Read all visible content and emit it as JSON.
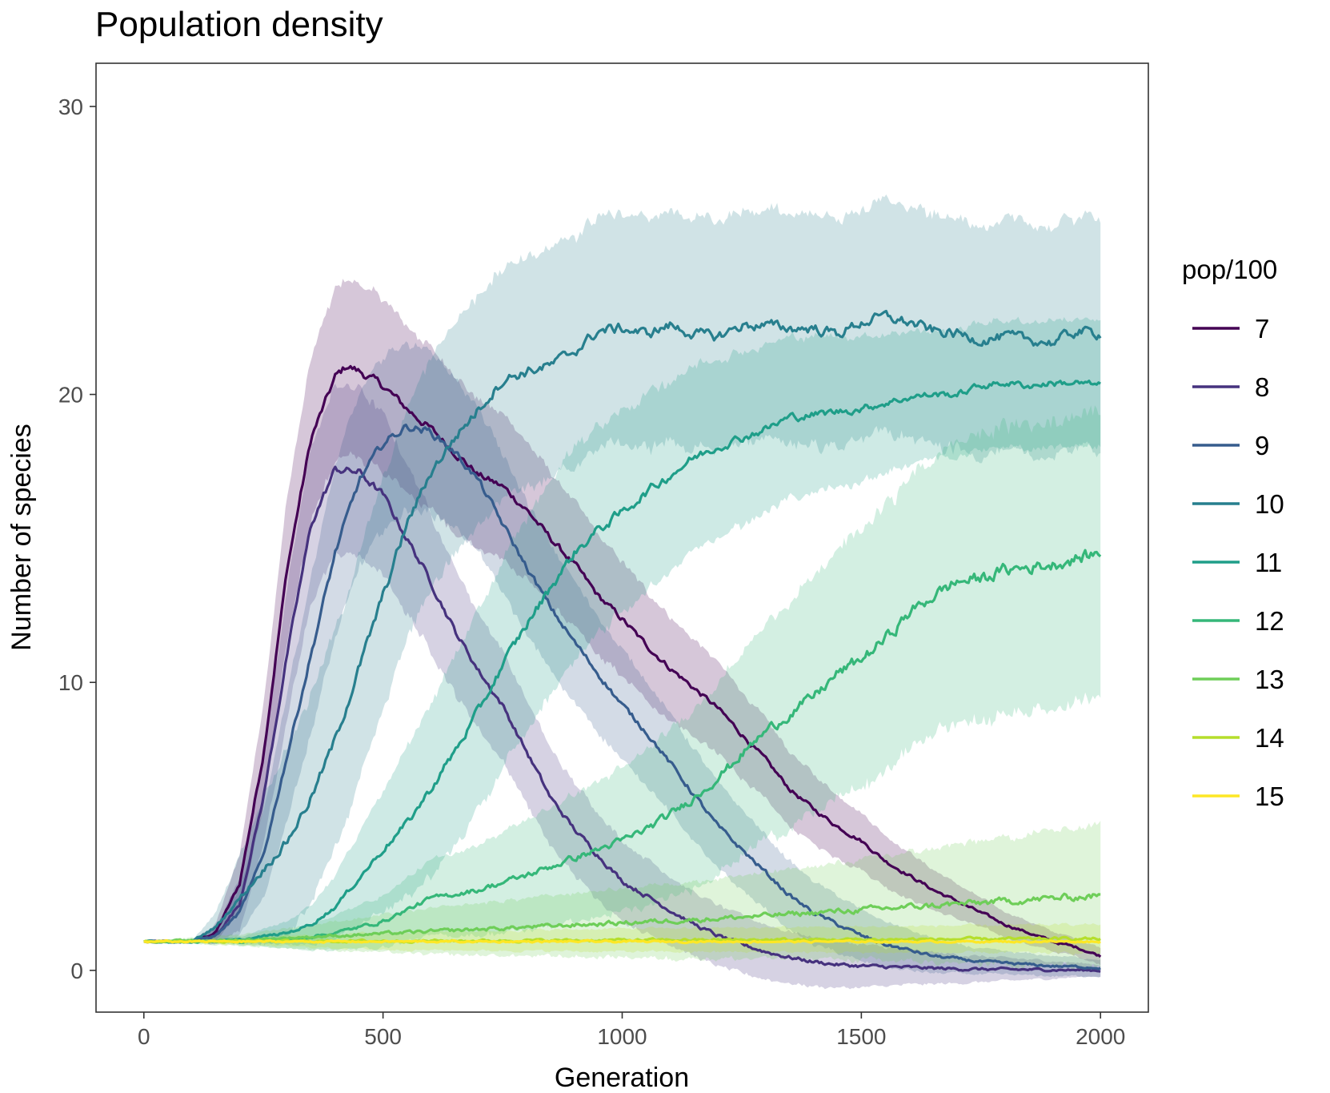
{
  "chart_data": {
    "type": "line",
    "title": "Population density",
    "xlabel": "Generation",
    "ylabel": "Number of species",
    "xlim": [
      -100,
      2100
    ],
    "ylim": [
      -1.45,
      31.5
    ],
    "xticks": [
      0,
      500,
      1000,
      1500,
      2000
    ],
    "yticks": [
      0,
      10,
      20,
      30
    ],
    "grid": false,
    "ribbons": true,
    "legend": {
      "title": "pop/100",
      "position": "right"
    },
    "series": [
      {
        "name": "7",
        "color": "#440154",
        "x": [
          0,
          100,
          150,
          200,
          250,
          300,
          350,
          400,
          425,
          450,
          500,
          550,
          600,
          650,
          700,
          750,
          800,
          850,
          900,
          950,
          1000,
          1050,
          1100,
          1150,
          1200,
          1250,
          1300,
          1350,
          1400,
          1450,
          1500,
          1550,
          1600,
          1650,
          1700,
          1750,
          1800,
          1850,
          1900,
          1950,
          2000
        ],
        "y": [
          1,
          1,
          1.3,
          3,
          7.5,
          14,
          18.5,
          20.6,
          21,
          20.8,
          20.3,
          19.5,
          18.8,
          18,
          17.2,
          16.8,
          16,
          15,
          14.1,
          13,
          12.2,
          11.3,
          10.5,
          9.8,
          9.1,
          8.2,
          7.3,
          6.3,
          5.6,
          5,
          4.5,
          3.8,
          3.3,
          2.8,
          2.4,
          2,
          1.6,
          1.3,
          1,
          0.8,
          0.5
        ],
        "band": [
          0,
          0,
          0.3,
          1,
          1.8,
          2.5,
          2.8,
          3,
          3,
          3,
          3,
          2.9,
          2.8,
          2.7,
          2.6,
          2.5,
          2.4,
          2.3,
          2.2,
          2.1,
          2,
          1.9,
          1.8,
          1.7,
          1.6,
          1.5,
          1.4,
          1.3,
          1.2,
          1.1,
          1,
          0.9,
          0.8,
          0.7,
          0.6,
          0.5,
          0.45,
          0.4,
          0.35,
          0.3,
          0.3
        ]
      },
      {
        "name": "8",
        "color": "#46327e",
        "x": [
          0,
          100,
          150,
          200,
          250,
          300,
          350,
          400,
          450,
          500,
          550,
          600,
          650,
          700,
          750,
          800,
          850,
          900,
          950,
          1000,
          1050,
          1100,
          1150,
          1200,
          1250,
          1300,
          1350,
          1400,
          1450,
          1500,
          1600,
          1700,
          1800,
          1900,
          2000
        ],
        "y": [
          1,
          1,
          1.2,
          2.3,
          6,
          11,
          15.5,
          17.4,
          17.3,
          16.5,
          15,
          13.5,
          11.8,
          10.4,
          9.2,
          7.6,
          6,
          4.9,
          4,
          3.1,
          2.6,
          2.1,
          1.6,
          1.2,
          0.9,
          0.65,
          0.45,
          0.3,
          0.2,
          0.15,
          0.1,
          0.05,
          0.03,
          0.02,
          0
        ],
        "band": [
          0,
          0,
          0.3,
          0.9,
          1.6,
          2.3,
          2.7,
          2.9,
          2.9,
          2.8,
          2.6,
          2.4,
          2.2,
          2,
          1.9,
          1.8,
          1.7,
          1.6,
          1.5,
          1.4,
          1.3,
          1.2,
          1.1,
          1.05,
          1,
          0.95,
          0.9,
          0.85,
          0.8,
          0.75,
          0.6,
          0.5,
          0.4,
          0.3,
          0.2
        ]
      },
      {
        "name": "9",
        "color": "#365c8d",
        "x": [
          0,
          100,
          150,
          200,
          250,
          300,
          350,
          400,
          450,
          500,
          550,
          600,
          650,
          700,
          750,
          800,
          850,
          900,
          950,
          1000,
          1050,
          1100,
          1150,
          1200,
          1250,
          1300,
          1350,
          1400,
          1450,
          1500,
          1550,
          1600,
          1650,
          1700,
          1750,
          1800,
          1900,
          2000
        ],
        "y": [
          1,
          1,
          1.2,
          2,
          4,
          7.5,
          11,
          14.5,
          17,
          18.3,
          18.9,
          18.7,
          18,
          17,
          15.5,
          14,
          12.6,
          11.4,
          10.3,
          9.2,
          8.3,
          7.2,
          6.1,
          5,
          4.2,
          3.4,
          2.6,
          2,
          1.6,
          1.2,
          0.9,
          0.7,
          0.5,
          0.4,
          0.3,
          0.25,
          0.15,
          0.1
        ],
        "band": [
          0,
          0,
          0.3,
          0.8,
          1.5,
          2.2,
          2.7,
          3,
          3,
          3,
          2.9,
          2.8,
          2.6,
          2.5,
          2.4,
          2.3,
          2.2,
          2.1,
          2,
          1.9,
          1.8,
          1.7,
          1.6,
          1.5,
          1.4,
          1.3,
          1.2,
          1.1,
          1,
          0.9,
          0.8,
          0.7,
          0.6,
          0.5,
          0.45,
          0.4,
          0.35,
          0.3
        ]
      },
      {
        "name": "10",
        "color": "#277f8e",
        "x": [
          0,
          100,
          150,
          200,
          250,
          300,
          350,
          400,
          450,
          500,
          550,
          600,
          650,
          700,
          750,
          800,
          850,
          900,
          950,
          1000,
          1050,
          1100,
          1150,
          1200,
          1250,
          1300,
          1350,
          1400,
          1450,
          1500,
          1550,
          1600,
          1650,
          1700,
          1750,
          1800,
          1850,
          1900,
          1950,
          2000
        ],
        "y": [
          1,
          1,
          1.5,
          2.5,
          3.5,
          4.5,
          6,
          8,
          10.5,
          13,
          15.5,
          17.3,
          18.5,
          19.5,
          20.5,
          20.8,
          21,
          21.5,
          22.2,
          22.3,
          22.1,
          22.4,
          22.1,
          22,
          22.4,
          22.4,
          22.3,
          22.3,
          22.1,
          22.5,
          22.7,
          22.5,
          22.2,
          22.1,
          21.9,
          22,
          21.9,
          21.8,
          22.2,
          22.1
        ],
        "band": [
          0,
          0,
          0.5,
          1.5,
          2.5,
          3.3,
          3.6,
          3.8,
          3.9,
          4,
          4,
          4,
          4,
          4,
          4,
          4,
          4,
          4,
          4,
          4,
          4,
          4,
          4,
          4,
          4,
          4,
          4,
          4,
          4,
          4,
          4,
          4,
          4,
          4,
          4,
          4,
          4,
          4,
          4,
          4
        ]
      },
      {
        "name": "11",
        "color": "#1f9e89",
        "x": [
          0,
          100,
          200,
          300,
          350,
          400,
          450,
          500,
          550,
          600,
          650,
          700,
          750,
          800,
          850,
          900,
          950,
          1000,
          1050,
          1100,
          1150,
          1200,
          1250,
          1300,
          1350,
          1400,
          1450,
          1500,
          1550,
          1600,
          1650,
          1700,
          1750,
          1800,
          1850,
          1900,
          1950,
          2000
        ],
        "y": [
          1,
          1,
          1.05,
          1.3,
          1.6,
          2.2,
          3.2,
          4.2,
          5.1,
          6.3,
          7.6,
          9,
          10.6,
          12,
          13.3,
          14.5,
          15.3,
          15.9,
          16.6,
          17.2,
          17.8,
          18.2,
          18.5,
          18.8,
          19.2,
          19.3,
          19.4,
          19.5,
          19.7,
          19.9,
          20,
          20,
          20.3,
          20.4,
          20.3,
          20.4,
          20.4,
          20.3
        ],
        "band": [
          0,
          0,
          0.1,
          0.4,
          0.7,
          1.1,
          1.6,
          2.1,
          2.6,
          3,
          3.3,
          3.5,
          3.6,
          3.7,
          3.7,
          3.7,
          3.6,
          3.5,
          3.4,
          3.3,
          3.2,
          3.1,
          3,
          2.9,
          2.8,
          2.7,
          2.6,
          2.5,
          2.4,
          2.3,
          2.2,
          2.2,
          2.2,
          2.2,
          2.2,
          2.2,
          2.2,
          2.2
        ]
      },
      {
        "name": "12",
        "color": "#35b779",
        "x": [
          0,
          100,
          200,
          300,
          400,
          500,
          550,
          600,
          700,
          800,
          900,
          1000,
          1050,
          1100,
          1150,
          1200,
          1250,
          1300,
          1350,
          1400,
          1450,
          1500,
          1550,
          1600,
          1650,
          1700,
          1750,
          1800,
          1850,
          1900,
          1950,
          2000
        ],
        "y": [
          1,
          1,
          1,
          1.05,
          1.3,
          1.7,
          2.1,
          2.5,
          2.8,
          3.3,
          3.9,
          4.5,
          4.9,
          5.4,
          6,
          6.7,
          7.5,
          8.3,
          8.9,
          9.5,
          10.3,
          10.8,
          11.5,
          12.4,
          13,
          13.5,
          13.6,
          13.9,
          14,
          14.1,
          14.3,
          14.5
        ],
        "band": [
          0,
          0,
          0.1,
          0.3,
          0.6,
          0.9,
          1.1,
          1.3,
          1.6,
          1.9,
          2.2,
          2.5,
          2.7,
          2.9,
          3.1,
          3.3,
          3.5,
          3.7,
          3.9,
          4.1,
          4.3,
          4.5,
          4.6,
          4.7,
          4.8,
          4.9,
          5,
          5,
          5,
          5,
          5,
          5
        ]
      },
      {
        "name": "13",
        "color": "#6ece58",
        "x": [
          0,
          200,
          400,
          600,
          800,
          1000,
          1200,
          1400,
          1600,
          1800,
          2000
        ],
        "y": [
          1,
          1.05,
          1.2,
          1.35,
          1.5,
          1.65,
          1.8,
          2.0,
          2.2,
          2.4,
          2.6
        ],
        "band": [
          0,
          0.2,
          0.5,
          0.8,
          1,
          1.2,
          1.4,
          1.6,
          1.9,
          2.2,
          2.5
        ]
      },
      {
        "name": "14",
        "color": "#b5de2b",
        "x": [
          0,
          500,
          1000,
          1500,
          2000
        ],
        "y": [
          1,
          1.02,
          1.05,
          1.07,
          1.1
        ],
        "band": [
          0,
          0.3,
          0.4,
          0.45,
          0.5
        ]
      },
      {
        "name": "15",
        "color": "#fde725",
        "x": [
          0,
          2000
        ],
        "y": [
          1,
          1
        ],
        "band": [
          0,
          0
        ]
      }
    ]
  }
}
